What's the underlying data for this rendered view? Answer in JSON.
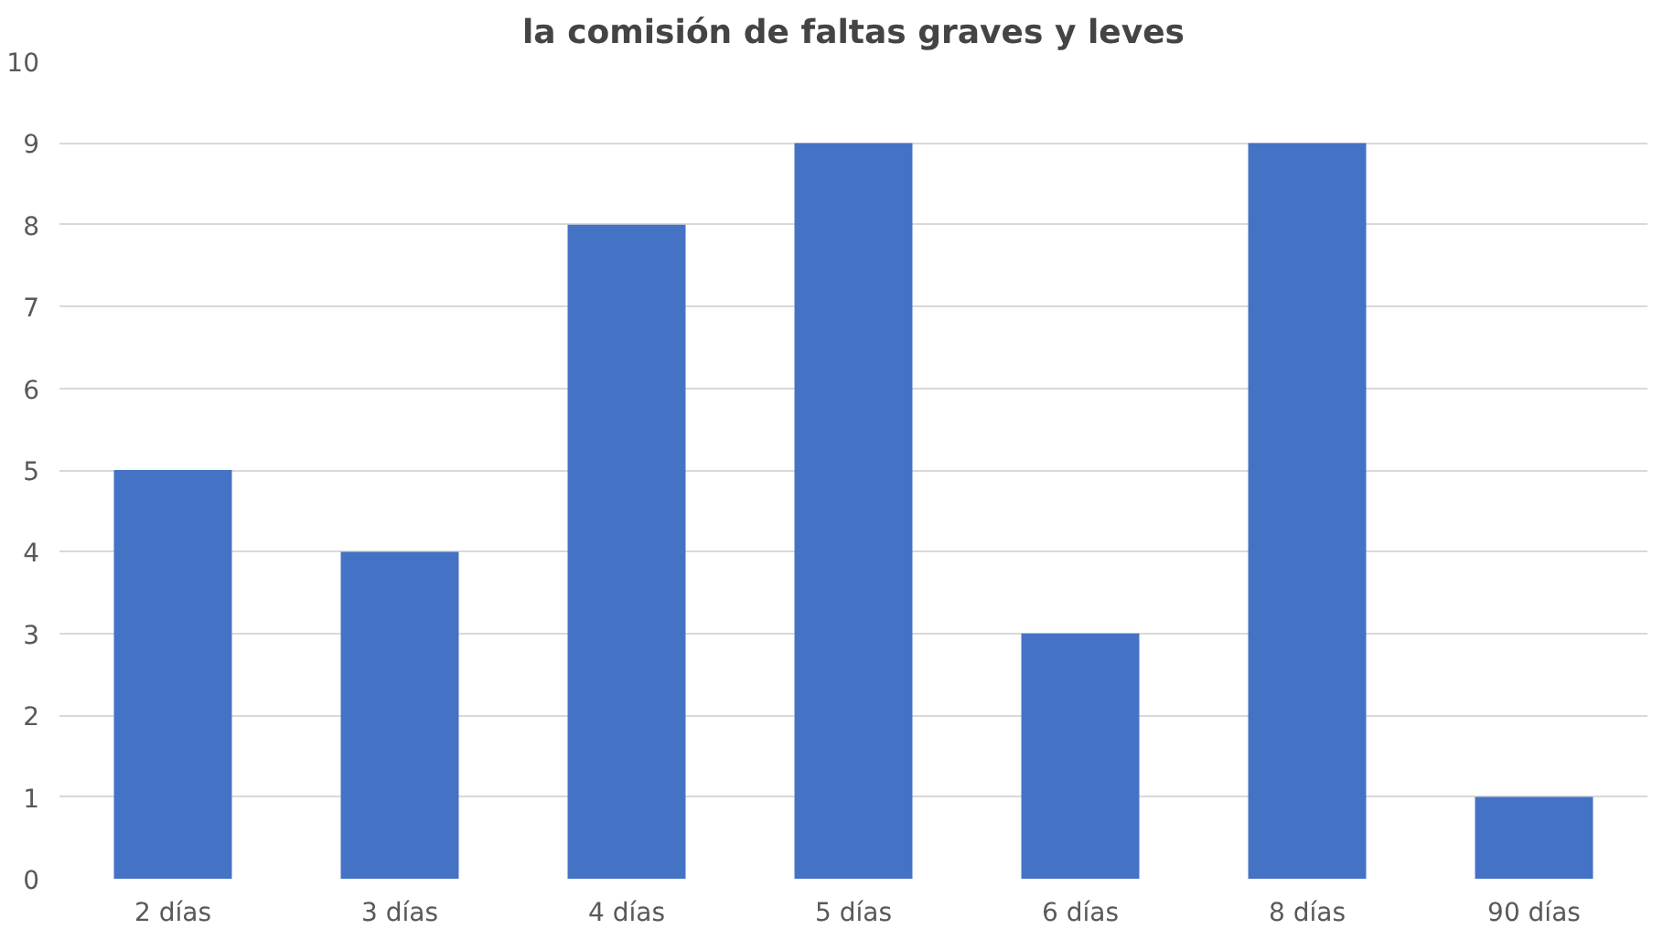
{
  "chart_data": {
    "type": "bar",
    "title": "la comisión de faltas graves y leves",
    "categories": [
      "2 días",
      "3 días",
      "4 días",
      "5 días",
      "6 días",
      "8 días",
      "90 días"
    ],
    "values": [
      5,
      4,
      8,
      9,
      3,
      9,
      1
    ],
    "color": "#4472c4",
    "ylim": [
      0,
      10
    ],
    "yticks": [
      0,
      1,
      2,
      3,
      4,
      5,
      6,
      7,
      8,
      9,
      10
    ],
    "grid": "y"
  }
}
